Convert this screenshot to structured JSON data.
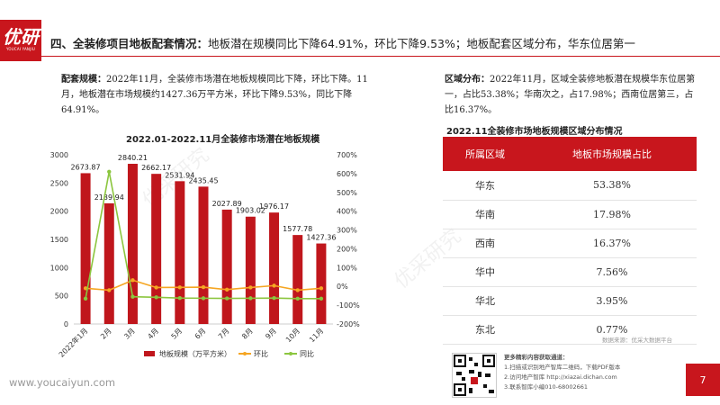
{
  "logo": {
    "mark": "优研",
    "sub": "YOUCAI YANJIU"
  },
  "header": {
    "lead": "四、全装修项目地板配套情况：",
    "rest": "地板潜在规模同比下降64.91%，环比下降9.53%；地板配套区域分布，华东位居第一"
  },
  "para_left": {
    "key": "配套规模：",
    "text": "2022年11月，全装修市场潜在地板规模同比下降，环比下降。11月，地板潜在市场规模约1427.36万平方米，环比下降9.53%，同比下降64.91%。"
  },
  "para_right": {
    "key": "区域分布：",
    "text": "2022年11月，区域全装修地板潜在规模华东位居第一，占比53.38%；华南次之，占17.98%；西南位居第三，占比16.37%。"
  },
  "chart_data": {
    "type": "bar",
    "title": "2022.01-2022.11月全装修市场潜在地板规模",
    "categories": [
      "2022年1月",
      "2月",
      "3月",
      "4月",
      "5月",
      "6月",
      "7月",
      "8月",
      "9月",
      "10月",
      "11月"
    ],
    "ylim": [
      0,
      3000
    ],
    "y2lim": [
      -200,
      700
    ],
    "yticks": [
      "0",
      "500",
      "1000",
      "1500",
      "2000",
      "2500",
      "3000"
    ],
    "y2ticks": [
      "-200%",
      "-100%",
      "0%",
      "100%",
      "200%",
      "300%",
      "400%",
      "500%",
      "600%",
      "700%"
    ],
    "series": [
      {
        "name": "地板规模（万平方米）",
        "kind": "bar",
        "axis": "left",
        "color": "#c0161c",
        "values": [
          2673.87,
          2139.94,
          2840.21,
          2662.17,
          2531.94,
          2435.45,
          2027.89,
          1903.02,
          1976.17,
          1577.78,
          1427.36
        ],
        "labels": [
          "2673.87",
          "2139.94",
          "2840.21",
          "2662.17",
          "2531.94",
          "2435.45",
          "2027.89",
          "1903.02",
          "1976.17",
          "1577.78",
          "1427.36"
        ]
      },
      {
        "name": "环比",
        "kind": "line",
        "axis": "right",
        "color": "#f5a623",
        "values": [
          -10,
          -20,
          33,
          -6,
          -5,
          -4,
          -17,
          -6,
          4,
          -20,
          -10
        ]
      },
      {
        "name": "同比",
        "kind": "line",
        "axis": "right",
        "color": "#8cc63f",
        "values": [
          -65,
          610,
          -55,
          -58,
          -62,
          -63,
          -64,
          -63,
          -62,
          -65,
          -65
        ]
      }
    ]
  },
  "table": {
    "title": "2022.11全装修市场地板规模区域分布情况",
    "headers": [
      "所属区域",
      "地板市场规模占比"
    ],
    "rows": [
      [
        "华东",
        "53.38%"
      ],
      [
        "华南",
        "17.98%"
      ],
      [
        "西南",
        "16.37%"
      ],
      [
        "华中",
        "7.56%"
      ],
      [
        "华北",
        "3.95%"
      ],
      [
        "东北",
        "0.77%"
      ]
    ]
  },
  "source": "数据来源：优采大数据平台",
  "qr_info": {
    "heading": "更多精彩内容获取通道：",
    "line1": "1.扫描或识别地产智库二维码，下载PDF版本",
    "line2": "2.访问地产智库 http://xiazai.dichan.com",
    "line3": "3.联系智库小编010-68002661"
  },
  "site": "www.youcaiyun.com",
  "page_number": "7",
  "watermark": "优采研究"
}
